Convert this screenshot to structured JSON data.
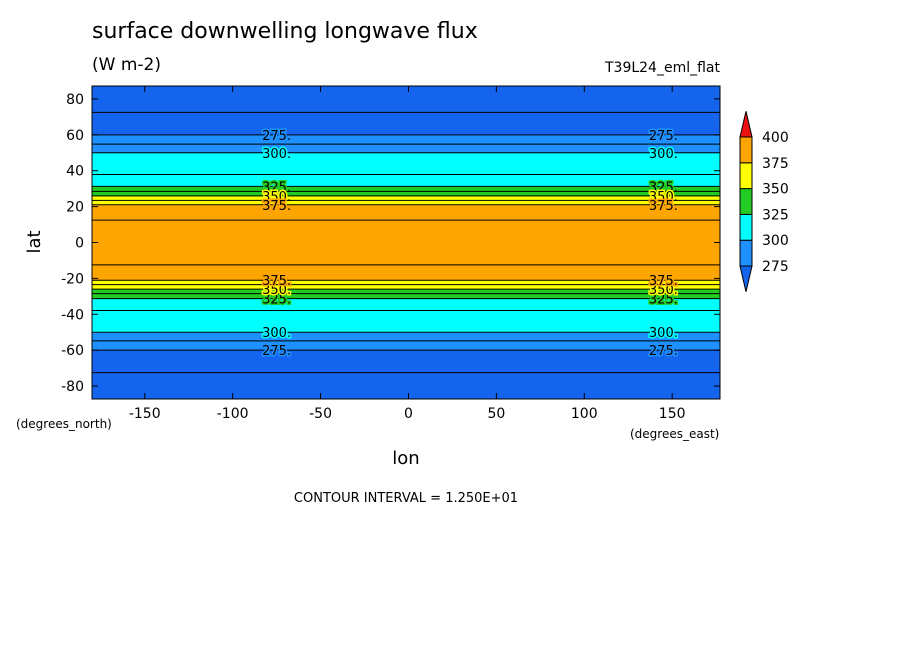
{
  "chart_data": {
    "type": "contour",
    "title": "surface downwelling longwave flux",
    "subtitle": "(W m-2)",
    "dataset": "T39L24_eml_flat",
    "xlabel": "lon",
    "ylabel": "lat",
    "xunit": "(degrees_east)",
    "yunit": "(degrees_north)",
    "footer_label": "CONTOUR INTERVAL =",
    "contour_interval": {
      "value": 12.5,
      "label": "1.250E+01"
    },
    "xlim": [
      -180,
      177.2
    ],
    "ylim": [
      -87.2,
      87.2
    ],
    "xticks": [
      -150,
      -100,
      -50,
      0,
      50,
      100,
      150
    ],
    "yticks": [
      -80,
      -60,
      -40,
      -20,
      0,
      20,
      40,
      60,
      80
    ],
    "lat": [
      -90,
      -80,
      -70,
      -60,
      -55,
      -50,
      -45,
      -40,
      -35,
      -32,
      -30,
      -27,
      -24,
      -21,
      -15,
      -10,
      0,
      10,
      15,
      21,
      24,
      27,
      30,
      32,
      35,
      40,
      45,
      50,
      55,
      60,
      70,
      80,
      90
    ],
    "values": [
      250,
      255,
      265,
      275,
      287,
      300,
      305,
      310,
      316,
      322,
      330,
      345,
      360,
      375,
      385,
      390,
      395,
      390,
      385,
      375,
      360,
      345,
      330,
      322,
      316,
      310,
      305,
      300,
      287,
      275,
      265,
      255,
      250
    ],
    "levels": [
      275,
      300,
      325,
      350,
      375,
      400
    ],
    "colors": [
      "#1464ee",
      "#1e90ff",
      "#00ffff",
      "#22cc22",
      "#ffff00",
      "#ffa500",
      "#ee1111"
    ],
    "contour_labels": [
      {
        "value": 275,
        "label": "275."
      },
      {
        "value": 300,
        "label": "300."
      },
      {
        "value": 325,
        "label": "325."
      },
      {
        "value": 350,
        "label": "350."
      },
      {
        "value": 375,
        "label": "375."
      }
    ]
  }
}
